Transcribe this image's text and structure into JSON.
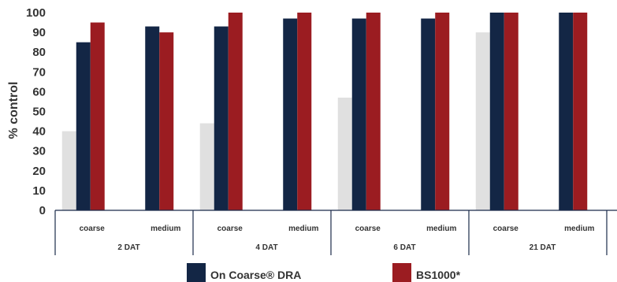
{
  "chart_data": {
    "type": "bar",
    "title": "",
    "xlabel": "",
    "ylabel": "% control",
    "ylim": [
      0,
      100
    ],
    "yticks": [
      0,
      10,
      20,
      30,
      40,
      50,
      60,
      70,
      80,
      90,
      100
    ],
    "grid": false,
    "legend_position": "bottom",
    "groups": [
      {
        "label": "2 DAT",
        "subcategories": [
          "coarse",
          "medium"
        ]
      },
      {
        "label": "4 DAT",
        "subcategories": [
          "coarse",
          "medium"
        ]
      },
      {
        "label": "6 DAT",
        "subcategories": [
          "coarse",
          "medium"
        ]
      },
      {
        "label": "21 DAT",
        "subcategories": [
          "coarse",
          "medium"
        ]
      }
    ],
    "categories": [
      "2 DAT coarse",
      "2 DAT medium",
      "4 DAT coarse",
      "4 DAT medium",
      "6 DAT coarse",
      "6 DAT medium",
      "21 DAT coarse",
      "21 DAT medium"
    ],
    "series": [
      {
        "values": [
          40,
          null,
          44,
          null,
          57,
          null,
          90,
          null
        ],
        "color": "#e0e0e0"
      },
      {
        "name": "On Coarse® DRA",
        "values": [
          85,
          93,
          93,
          97,
          97,
          97,
          100,
          100
        ],
        "color": "#132645"
      },
      {
        "name": "BS1000*",
        "values": [
          95,
          90,
          100,
          100,
          100,
          100,
          100,
          100
        ],
        "color": "#9b1c21"
      }
    ]
  }
}
